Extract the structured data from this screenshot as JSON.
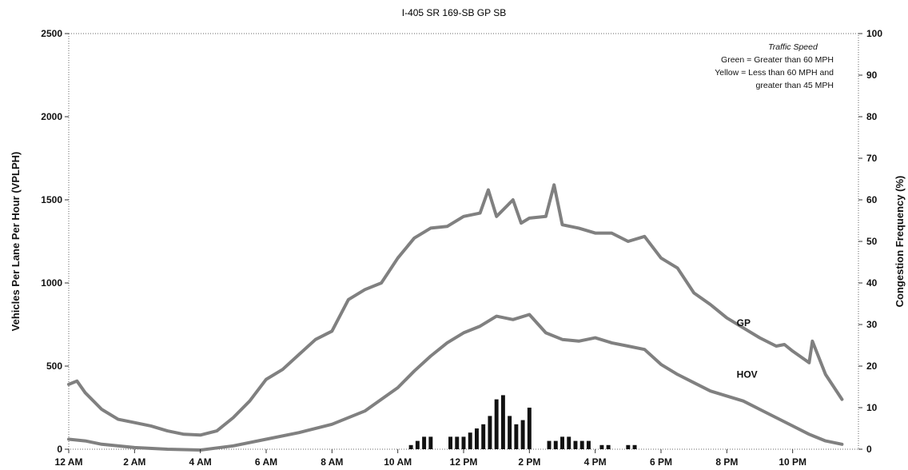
{
  "chart_data": {
    "type": "line",
    "title": "I-405  SR 169-SB     GP SB",
    "xlabel": "",
    "ylabel": "Vehicles Per Lane Per Hour (VPLPH)",
    "y2label": "Congestion Frequency (%)",
    "ylim": [
      0,
      2500
    ],
    "y2lim": [
      0,
      100
    ],
    "xlim": [
      0,
      24
    ],
    "x_ticks": [
      0,
      2,
      4,
      6,
      8,
      10,
      12,
      14,
      16,
      18,
      20,
      22
    ],
    "x_tick_labels": [
      "12 AM",
      "2 AM",
      "4 AM",
      "6 AM",
      "8 AM",
      "10 AM",
      "12 PM",
      "2 PM",
      "4 PM",
      "6 PM",
      "8 PM",
      "10 PM"
    ],
    "y_ticks": [
      0,
      500,
      1000,
      1500,
      2000,
      2500
    ],
    "y2_ticks": [
      0,
      10,
      20,
      30,
      40,
      50,
      60,
      70,
      80,
      90,
      100
    ],
    "grid": false,
    "legend": {
      "title": "Traffic Speed",
      "lines": [
        "Green = Greater than 60 MPH",
        "Yellow = Less than 60 MPH and",
        "greater than 45 MPH"
      ],
      "placement": "top-right"
    },
    "series": [
      {
        "name": "GP",
        "color": "#808080",
        "x": [
          0,
          0.25,
          0.5,
          1,
          1.5,
          2,
          2.5,
          3,
          3.5,
          4,
          4.5,
          5,
          5.5,
          6,
          6.5,
          7,
          7.5,
          8,
          8.5,
          9,
          9.5,
          10,
          10.5,
          11,
          11.5,
          12,
          12.5,
          12.75,
          13,
          13.5,
          13.75,
          14,
          14.5,
          14.75,
          15,
          15.5,
          16,
          16.5,
          17,
          17.5,
          18,
          18.5,
          19,
          19.5,
          20,
          20.5,
          21,
          21.5,
          21.75,
          22,
          22.5,
          22.6,
          23,
          23.5
        ],
        "values": [
          390,
          410,
          340,
          240,
          180,
          160,
          140,
          110,
          90,
          85,
          110,
          190,
          290,
          420,
          480,
          570,
          660,
          710,
          900,
          960,
          1000,
          1150,
          1270,
          1330,
          1340,
          1400,
          1420,
          1560,
          1400,
          1500,
          1360,
          1390,
          1400,
          1590,
          1350,
          1330,
          1300,
          1300,
          1250,
          1280,
          1150,
          1090,
          940,
          870,
          790,
          730,
          670,
          620,
          630,
          590,
          520,
          650,
          450,
          300
        ]
      },
      {
        "name": "HOV",
        "color": "#808080",
        "x": [
          0,
          0.5,
          1,
          2,
          3,
          4,
          5,
          6,
          7,
          8,
          9,
          10,
          10.5,
          11,
          11.5,
          12,
          12.5,
          13,
          13.5,
          14,
          14.5,
          15,
          15.5,
          16,
          16.5,
          17,
          17.5,
          18,
          18.5,
          19,
          19.5,
          20,
          20.5,
          21,
          21.5,
          22,
          22.5,
          23,
          23.5
        ],
        "values": [
          60,
          50,
          30,
          10,
          0,
          -5,
          20,
          60,
          100,
          150,
          230,
          370,
          470,
          560,
          640,
          700,
          740,
          800,
          780,
          810,
          700,
          660,
          650,
          670,
          640,
          620,
          600,
          510,
          450,
          400,
          350,
          320,
          290,
          240,
          190,
          140,
          90,
          50,
          30
        ]
      }
    ],
    "bars": {
      "name": "Congestion Frequency",
      "axis": "y2",
      "color": "#111111",
      "x": [
        10.4,
        10.6,
        10.8,
        11.0,
        11.6,
        11.8,
        12.0,
        12.2,
        12.4,
        12.6,
        12.8,
        13.0,
        13.2,
        13.4,
        13.6,
        13.8,
        14.0,
        14.6,
        14.8,
        15.0,
        15.2,
        15.4,
        15.6,
        15.8,
        16.2,
        16.4,
        17.0,
        17.2
      ],
      "values": [
        1,
        2,
        3,
        3,
        3,
        3,
        3,
        4,
        5,
        6,
        8,
        12,
        13,
        8,
        6,
        7,
        10,
        2,
        2,
        3,
        3,
        2,
        2,
        2,
        1,
        1,
        1,
        1
      ]
    },
    "annotations": [
      {
        "text": "GP",
        "x": 20.3,
        "y": 740
      },
      {
        "text": "HOV",
        "x": 20.3,
        "y": 430
      }
    ]
  }
}
